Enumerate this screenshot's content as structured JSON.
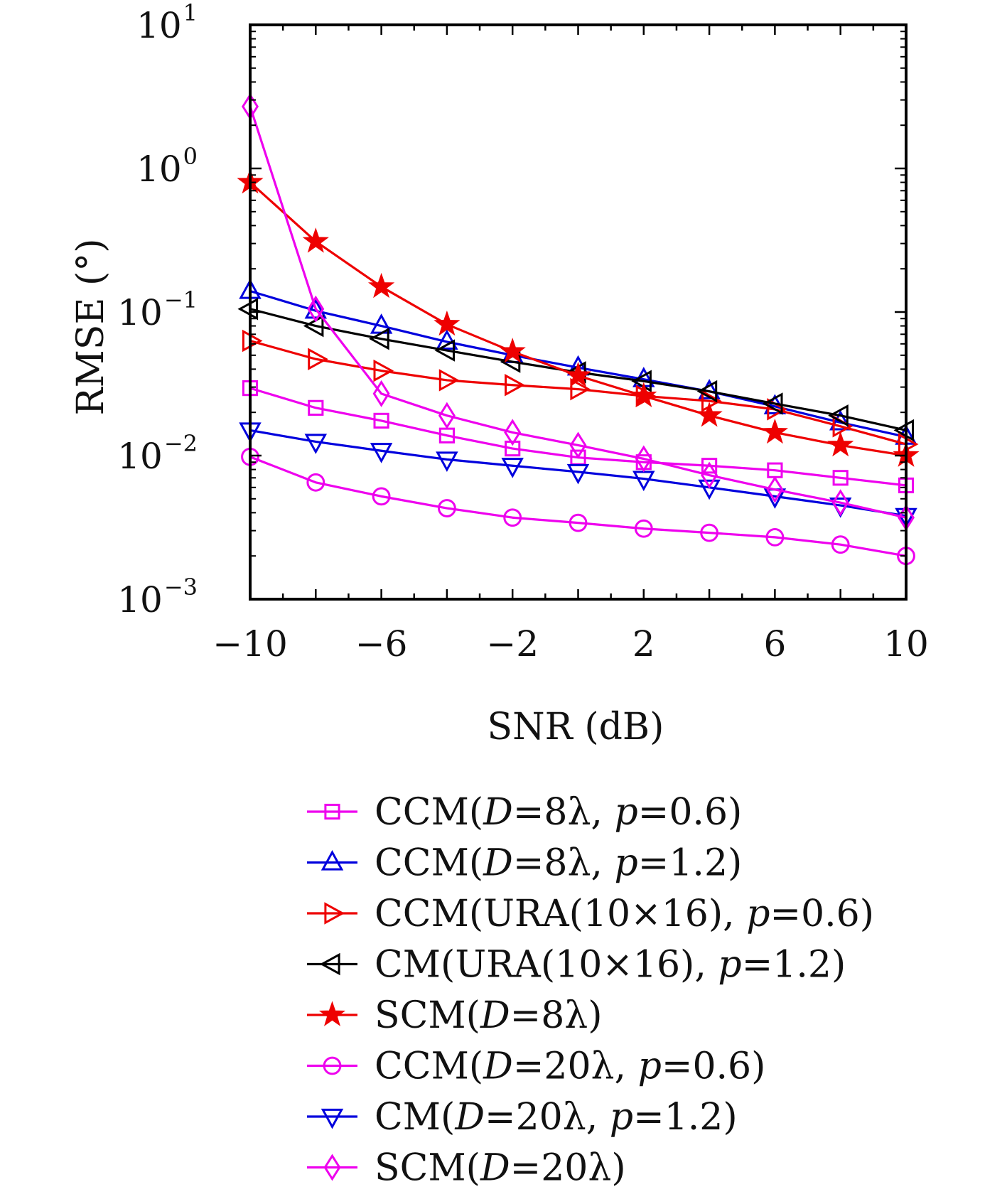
{
  "chart_data": {
    "type": "line",
    "xlabel": "SNR (dB)",
    "ylabel": "RMSE (°)",
    "x": [
      -10,
      -8,
      -6,
      -4,
      -2,
      0,
      2,
      4,
      6,
      8,
      10
    ],
    "xlim": [
      -10,
      10
    ],
    "ylim": [
      0.001,
      10
    ],
    "yscale": "log",
    "xticks": [
      {
        "value": -10,
        "label": "−10"
      },
      {
        "value": -6,
        "label": "−6"
      },
      {
        "value": -2,
        "label": "−2"
      },
      {
        "value": 2,
        "label": "2"
      },
      {
        "value": 6,
        "label": "6"
      },
      {
        "value": 10,
        "label": "10"
      }
    ],
    "yticks": [
      {
        "value": 10,
        "base": "10",
        "exp": "1"
      },
      {
        "value": 1,
        "base": "10",
        "exp": "0"
      },
      {
        "value": 0.1,
        "base": "10",
        "exp": "−1"
      },
      {
        "value": 0.01,
        "base": "10",
        "exp": "−2"
      },
      {
        "value": 0.001,
        "base": "10",
        "exp": "−3"
      }
    ],
    "grid": false,
    "legend_position": "below",
    "series": [
      {
        "name": "CCM(D=8λ, p=0.6)",
        "color": "#ee00ee",
        "marker": "square",
        "values": [
          0.0295,
          0.0215,
          0.0175,
          0.0138,
          0.0112,
          0.0097,
          0.009,
          0.0085,
          0.0079,
          0.007,
          0.0062
        ]
      },
      {
        "name": "CCM(D=8λ, p=1.2)",
        "color": "#0000dd",
        "marker": "triangle-up",
        "values": [
          0.14,
          0.102,
          0.08,
          0.062,
          0.05,
          0.041,
          0.034,
          0.028,
          0.022,
          0.017,
          0.0135
        ]
      },
      {
        "name": "CCM(URA(10×16), p=0.6)",
        "color": "#ee0000",
        "marker": "triangle-right",
        "values": [
          0.063,
          0.047,
          0.039,
          0.0335,
          0.031,
          0.029,
          0.026,
          0.024,
          0.021,
          0.016,
          0.012
        ]
      },
      {
        "name": "CM(URA(10×16), p=1.2)",
        "color": "#000000",
        "marker": "triangle-left",
        "values": [
          0.105,
          0.08,
          0.065,
          0.054,
          0.045,
          0.038,
          0.033,
          0.028,
          0.023,
          0.019,
          0.015
        ]
      },
      {
        "name": "SCM(D=8λ)",
        "color": "#ee0000",
        "marker": "star",
        "values": [
          0.8,
          0.31,
          0.15,
          0.082,
          0.053,
          0.036,
          0.026,
          0.019,
          0.0145,
          0.0118,
          0.01
        ]
      },
      {
        "name": "CCM(D=20λ, p=0.6)",
        "color": "#ee00ee",
        "marker": "circle",
        "values": [
          0.0098,
          0.0065,
          0.0052,
          0.0043,
          0.0037,
          0.0034,
          0.0031,
          0.0029,
          0.0027,
          0.0024,
          0.002
        ]
      },
      {
        "name": "CM(D=20λ, p=1.2)",
        "color": "#0000dd",
        "marker": "triangle-down",
        "values": [
          0.015,
          0.0125,
          0.0108,
          0.0094,
          0.0085,
          0.0077,
          0.0069,
          0.006,
          0.0052,
          0.0045,
          0.0038
        ]
      },
      {
        "name": "SCM(D=20λ)",
        "color": "#ee00ee",
        "marker": "diamond",
        "values": [
          2.7,
          0.105,
          0.027,
          0.019,
          0.0145,
          0.0118,
          0.0095,
          0.0073,
          0.0058,
          0.0047,
          0.0037
        ]
      }
    ],
    "legend": [
      {
        "parts": [
          {
            "t": "CCM("
          },
          {
            "t": "D",
            "i": true
          },
          {
            "t": "=8λ, "
          },
          {
            "t": "p",
            "i": true
          },
          {
            "t": "=0.6)"
          }
        ]
      },
      {
        "parts": [
          {
            "t": "CCM("
          },
          {
            "t": "D",
            "i": true
          },
          {
            "t": "=8λ, "
          },
          {
            "t": "p",
            "i": true
          },
          {
            "t": "=1.2)"
          }
        ]
      },
      {
        "parts": [
          {
            "t": "CCM(URA(10×16), "
          },
          {
            "t": "p",
            "i": true
          },
          {
            "t": "=0.6)"
          }
        ]
      },
      {
        "parts": [
          {
            "t": "CM(URA(10×16), "
          },
          {
            "t": "p",
            "i": true
          },
          {
            "t": "=1.2)"
          }
        ]
      },
      {
        "parts": [
          {
            "t": "SCM("
          },
          {
            "t": "D",
            "i": true
          },
          {
            "t": "=8λ)"
          }
        ]
      },
      {
        "parts": [
          {
            "t": "CCM("
          },
          {
            "t": "D",
            "i": true
          },
          {
            "t": "=20λ, "
          },
          {
            "t": "p",
            "i": true
          },
          {
            "t": "=0.6)"
          }
        ]
      },
      {
        "parts": [
          {
            "t": "CM("
          },
          {
            "t": "D",
            "i": true
          },
          {
            "t": "=20λ, "
          },
          {
            "t": "p",
            "i": true
          },
          {
            "t": "=1.2)"
          }
        ]
      },
      {
        "parts": [
          {
            "t": "SCM("
          },
          {
            "t": "D",
            "i": true
          },
          {
            "t": "=20λ)"
          }
        ]
      }
    ]
  }
}
